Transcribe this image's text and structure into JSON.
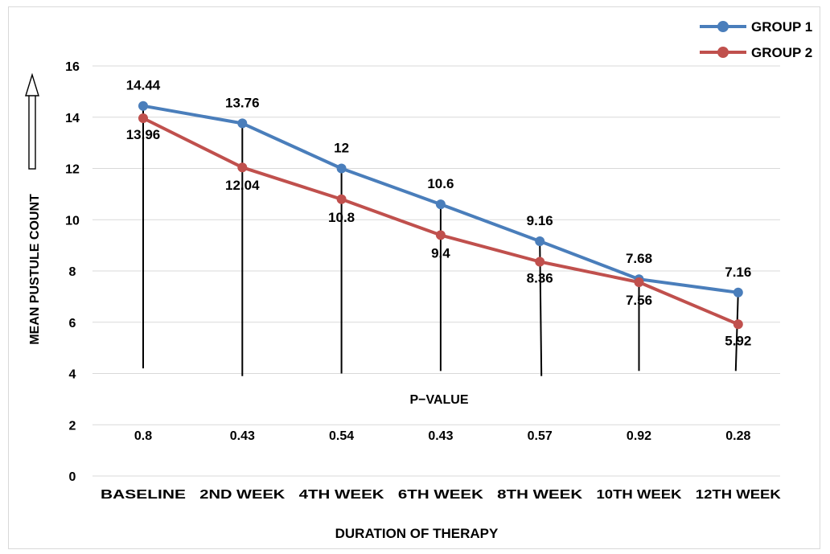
{
  "chart_data": {
    "type": "line",
    "categories": [
      "BASELINE",
      "2ND WEEK",
      "4TH WEEK",
      "6TH WEEK",
      "8TH WEEK",
      "10TH WEEK",
      "12TH WEEK"
    ],
    "series": [
      {
        "name": "GROUP 1",
        "color": "#4a7ebb",
        "values": [
          14.44,
          13.76,
          12,
          10.6,
          9.16,
          7.68,
          7.16
        ],
        "labels": [
          "14.44",
          "13.76",
          "12",
          "10.6",
          "9.16",
          "7.68",
          "7.16"
        ]
      },
      {
        "name": "GROUP 2",
        "color": "#c0504d",
        "values": [
          13.96,
          12.04,
          10.8,
          9.4,
          8.36,
          7.56,
          5.92
        ],
        "labels": [
          "13.96",
          "12.04",
          "10.8",
          "9.4",
          "8.36",
          "7.56",
          "5.92"
        ]
      }
    ],
    "p_values_label": "P−VALUE",
    "p_values": [
      "0.8",
      "0.43",
      "0.54",
      "0.43",
      "0.57",
      "0.92",
      "0.28"
    ],
    "xlabel": "DURATION OF THERAPY",
    "ylabel": "MEAN PUSTULE COUNT",
    "ylim": [
      0,
      16
    ],
    "yticks": [
      0,
      2,
      4,
      6,
      8,
      10,
      12,
      14,
      16
    ],
    "grid": true,
    "legend": "top-right"
  }
}
